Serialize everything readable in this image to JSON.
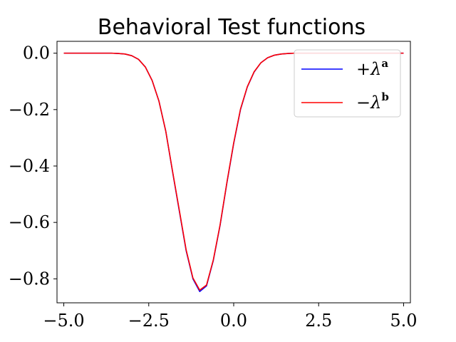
{
  "chart_data": {
    "type": "line",
    "title": "Behavioral Test functions",
    "xlabel": "",
    "ylabel": "",
    "xlim": [
      -5.2,
      5.2
    ],
    "ylim": [
      -0.885,
      0.042
    ],
    "xticks": [
      -5.0,
      -2.5,
      0.0,
      2.5,
      5.0
    ],
    "xtick_labels": [
      "−5.0",
      "−2.5",
      "0.0",
      "2.5",
      "5.0"
    ],
    "yticks": [
      0.0,
      -0.2,
      -0.4,
      -0.6,
      -0.8
    ],
    "ytick_labels": [
      "0.0",
      "−0.2",
      "−0.4",
      "−0.6",
      "−0.8"
    ],
    "grid": false,
    "legend_position": "top-right",
    "x": [
      -5.0,
      -4.8,
      -4.6,
      -4.4,
      -4.2,
      -4.0,
      -3.8,
      -3.6,
      -3.4,
      -3.2,
      -3.0,
      -2.8,
      -2.6,
      -2.4,
      -2.2,
      -2.0,
      -1.8,
      -1.6,
      -1.4,
      -1.2,
      -1.0,
      -0.8,
      -0.6,
      -0.4,
      -0.2,
      0.0,
      0.2,
      0.4,
      0.6,
      0.8,
      1.0,
      1.2,
      1.4,
      1.6,
      1.8,
      2.0,
      2.2,
      2.4,
      2.6,
      2.8,
      3.0,
      3.2,
      3.4,
      3.6,
      3.8,
      4.0,
      4.2,
      4.4,
      4.6,
      4.8,
      5.0
    ],
    "series": [
      {
        "name": "+λ",
        "name_sup": "a",
        "color": "#0000ff",
        "values": [
          0.0,
          0.0,
          0.0,
          0.0,
          0.0,
          0.0,
          0.0,
          0.0,
          -0.001,
          -0.003,
          -0.009,
          -0.022,
          -0.049,
          -0.097,
          -0.17,
          -0.276,
          -0.42,
          -0.56,
          -0.7,
          -0.8,
          -0.845,
          -0.825,
          -0.735,
          -0.61,
          -0.46,
          -0.32,
          -0.2,
          -0.12,
          -0.067,
          -0.034,
          -0.016,
          -0.007,
          -0.003,
          -0.001,
          0.0,
          0.0,
          0.0,
          0.0,
          0.0,
          0.0,
          0.0,
          0.0,
          0.0,
          0.0,
          0.0,
          0.0,
          0.0,
          0.0,
          0.0,
          0.0,
          0.0
        ]
      },
      {
        "name": "−λ",
        "name_sup": "b",
        "color": "#ff0000",
        "values": [
          0.0,
          0.0,
          0.0,
          0.0,
          0.0,
          0.0,
          0.0,
          0.0,
          -0.001,
          -0.003,
          -0.009,
          -0.022,
          -0.049,
          -0.097,
          -0.17,
          -0.276,
          -0.418,
          -0.557,
          -0.697,
          -0.797,
          -0.84,
          -0.822,
          -0.733,
          -0.608,
          -0.458,
          -0.318,
          -0.198,
          -0.119,
          -0.066,
          -0.034,
          -0.016,
          -0.007,
          -0.003,
          -0.001,
          0.0,
          0.0,
          0.0,
          0.0,
          0.0,
          0.0,
          0.0,
          0.0,
          0.0,
          0.0,
          0.0,
          0.0,
          0.0,
          0.0,
          0.0,
          0.0,
          0.0
        ]
      }
    ]
  }
}
